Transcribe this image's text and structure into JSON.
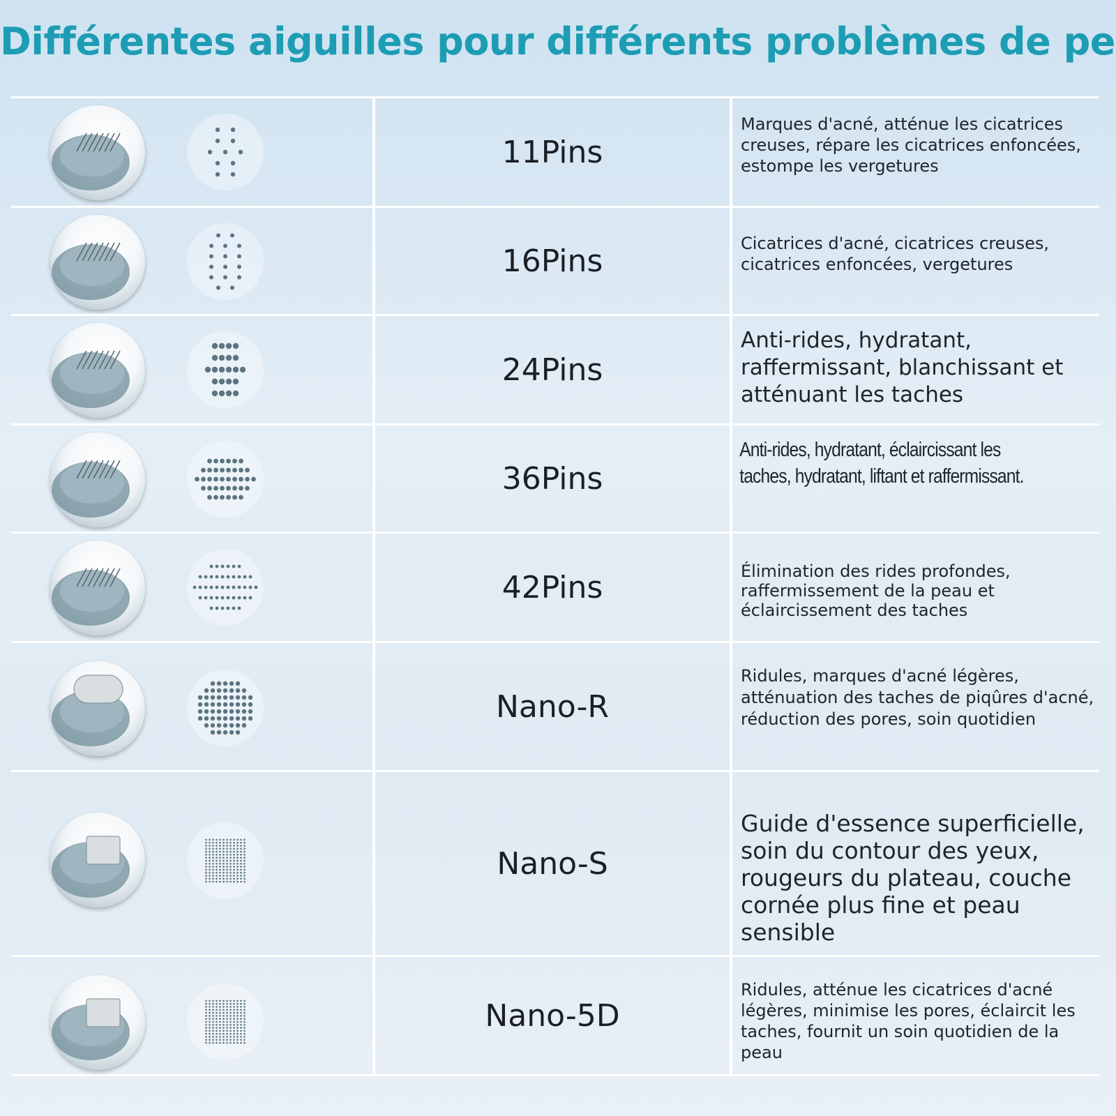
{
  "title": "Différentes aiguilles pour différents problèmes de peau",
  "rows": [
    {
      "name": "11Pins",
      "icon": "needle-cartridge-icon",
      "pattern": "pin-pattern-11-icon",
      "description": "Marques d'acné, atténue les cicatrices creuses, répare les cicatrices enfoncées, estompe les vergetures"
    },
    {
      "name": "16Pins",
      "icon": "needle-cartridge-icon",
      "pattern": "pin-pattern-16-icon",
      "description": "Cicatrices d'acné, cicatrices creuses, cicatrices enfoncées, vergetures"
    },
    {
      "name": "24Pins",
      "icon": "needle-cartridge-icon",
      "pattern": "pin-pattern-24-icon",
      "description": "Anti-rides, hydratant, raffermissant, blanchissant et atténuant les taches"
    },
    {
      "name": "36Pins",
      "icon": "needle-cartridge-icon",
      "pattern": "pin-pattern-36-icon",
      "description": "Anti-rides, hydratant, éclaircissant les taches, hydratant, liftant et raffermissant."
    },
    {
      "name": "42Pins",
      "icon": "needle-cartridge-icon",
      "pattern": "pin-pattern-42-icon",
      "description": "Élimination des rides profondes, raffermissement de la peau et éclaircissement des taches"
    },
    {
      "name": "Nano-R",
      "icon": "nano-round-cartridge-icon",
      "pattern": "nano-round-pattern-icon",
      "description": "Ridules, marques d'acné légères, atténuation des taches de piqûres d'acné, réduction des pores, soin quotidien"
    },
    {
      "name": "Nano-S",
      "icon": "nano-square-cartridge-icon",
      "pattern": "nano-square-pattern-icon",
      "description": "Guide d'essence superficielle, soin du contour des yeux, rougeurs du plateau, couche cornée plus fine et peau sensible"
    },
    {
      "name": "Nano-5D",
      "icon": "nano-5d-cartridge-icon",
      "pattern": "nano-5d-pattern-icon",
      "description": "Ridules, atténue les cicatrices d'acné légères, minimise les pores, éclaircit les taches, fournit un soin quotidien de la peau"
    }
  ],
  "colors": {
    "title": "#1d9db3",
    "dot": "#5d7480",
    "divider": "#ffffff"
  }
}
